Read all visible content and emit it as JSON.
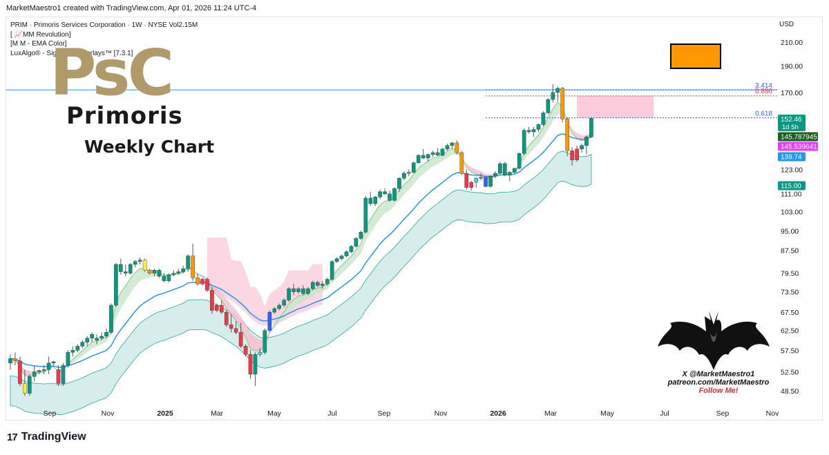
{
  "header": {
    "attribution": "MarketMaestro1 created with TradingView.com, Apr 01, 2026 11:24 UTC-4"
  },
  "legend": [
    "PRIM · Primoris Services Corporation · 1W · NYSE  Vol2.15M",
    "[ 📈MM Revolution]",
    "[M M - EMA Color]",
    "LuxAlgo® - Signals & Overlays™ [7.3.1]"
  ],
  "currency": "USD",
  "brand": {
    "logo_text": "PsC",
    "name": "Primoris",
    "subtitle": "Weekly Chart"
  },
  "social": {
    "x_handle": "X @MarketMaestro1",
    "patreon": "patreon.com/MarketMaestro",
    "follow": "Follow Me!"
  },
  "footer": {
    "logo_mark": "17",
    "logo_text": "TradingView"
  },
  "colors": {
    "up": "#089981",
    "down": "#f23645",
    "orange": "#ff9800",
    "blue": "#2962ff",
    "cyan": "#4dd0e1",
    "yellow": "#ffeb3b",
    "ema": "#2196f3",
    "band": "#b2dfdb",
    "cloud_up": "#c8e6c9",
    "cloud_down": "#f8bbd0"
  },
  "chart_data": {
    "type": "candlestick",
    "symbol": "PRIM",
    "interval": "1W",
    "y_scale": "log",
    "ylim": [
      45,
      230
    ],
    "y_ticks": [
      "210.00",
      "190.00",
      "170.00",
      "152.46",
      "145.787945",
      "145.539641",
      "139.74",
      "123.00",
      "115.00",
      "111.00",
      "103.00",
      "95.00",
      "87.50",
      "79.50",
      "73.50",
      "67.50",
      "62.50",
      "57.50",
      "52.50",
      "48.50"
    ],
    "x_ticks": [
      "Sep",
      "Nov",
      "2025",
      "Mar",
      "May",
      "Jul",
      "Sep",
      "Nov",
      "2026",
      "Mar",
      "May",
      "Jul",
      "Sep",
      "Nov"
    ],
    "price_labels": [
      {
        "value": "152.46",
        "sub": "1d 5h",
        "color": "#089981"
      },
      {
        "value": "145.787945",
        "color": "#1b5e20"
      },
      {
        "value": "145.539641",
        "color": "#e040fb"
      },
      {
        "value": "139.74",
        "color": "#2196f3"
      },
      {
        "value": "115.00",
        "color": "#089981"
      }
    ],
    "fib_levels": [
      {
        "label": "3.414",
        "value": 171.8,
        "color": "#2962ff"
      },
      {
        "label": "0.886",
        "value": 167.5,
        "color": "#f23645"
      },
      {
        "label": "0.618",
        "value": 152.8,
        "color": "#2962ff"
      }
    ],
    "resistance_line": 171.8,
    "zone": {
      "from_week": 118,
      "to_week": 134,
      "low": 152.8,
      "high": 167.5
    },
    "candles": [
      [
        54.5,
        56.5,
        53,
        55.5,
        "up"
      ],
      [
        55.5,
        57,
        54,
        55,
        "orange"
      ],
      [
        55,
        56,
        49.5,
        50,
        "down"
      ],
      [
        50,
        53,
        47.5,
        48,
        "yellow"
      ],
      [
        48,
        52,
        47.5,
        51.5,
        "up"
      ],
      [
        51.5,
        54,
        50.5,
        52.5,
        "up"
      ],
      [
        52.5,
        53,
        52,
        52.8,
        "up"
      ],
      [
        52.8,
        54,
        52,
        53,
        "up"
      ],
      [
        53,
        56,
        52,
        54.5,
        "up"
      ],
      [
        54.5,
        55,
        54,
        54.8,
        "up"
      ],
      [
        53,
        54,
        49.5,
        50,
        "down"
      ],
      [
        50,
        54.5,
        49.5,
        54,
        "up"
      ],
      [
        54,
        57.5,
        53.5,
        57,
        "up"
      ],
      [
        57,
        58.5,
        56,
        57.5,
        "up"
      ],
      [
        57.5,
        59,
        57,
        58.5,
        "up"
      ],
      [
        58.5,
        60,
        58,
        59.5,
        "up"
      ],
      [
        59.5,
        61,
        58.5,
        60.5,
        "up"
      ],
      [
        60.5,
        62,
        59.5,
        61.5,
        "up"
      ],
      [
        60,
        61.5,
        59,
        60.5,
        "up"
      ],
      [
        60.5,
        62,
        60,
        61,
        "up"
      ],
      [
        61,
        63,
        60.5,
        62,
        "up"
      ],
      [
        62,
        70,
        61.5,
        69.5,
        "up"
      ],
      [
        69.5,
        83,
        69,
        82.5,
        "up"
      ],
      [
        82.5,
        84.5,
        79,
        80,
        "up"
      ],
      [
        80,
        82.5,
        78.5,
        79.5,
        "up"
      ],
      [
        79.5,
        83,
        79,
        82.5,
        "up"
      ],
      [
        82.5,
        84,
        81.5,
        83.5,
        "up"
      ],
      [
        83.5,
        85,
        82.5,
        84,
        "up"
      ],
      [
        84,
        84.5,
        80,
        80.5,
        "yellow"
      ],
      [
        80.5,
        81,
        79,
        79.5,
        "orange"
      ],
      [
        79.5,
        81,
        78.5,
        80.5,
        "up"
      ],
      [
        80.5,
        81,
        78,
        78.5,
        "up"
      ],
      [
        78.5,
        79.5,
        76.5,
        77,
        "up"
      ],
      [
        77,
        79.5,
        76.5,
        79,
        "up"
      ],
      [
        79,
        80.5,
        78.5,
        79.5,
        "up"
      ],
      [
        79.5,
        81,
        79,
        80,
        "up"
      ],
      [
        80,
        82,
        79.5,
        81,
        "up"
      ],
      [
        81,
        86,
        80,
        85.5,
        "up"
      ],
      [
        85.5,
        90,
        77,
        78,
        "orange"
      ],
      [
        78,
        79.5,
        75.5,
        76,
        "orange"
      ],
      [
        76,
        78,
        75.5,
        77.5,
        "down"
      ],
      [
        77.5,
        78,
        73.5,
        74,
        "down"
      ],
      [
        74,
        75,
        67,
        68,
        "down"
      ],
      [
        68,
        70,
        67.5,
        69.5,
        "down"
      ],
      [
        69.5,
        71,
        67,
        67.5,
        "down"
      ],
      [
        67.5,
        68,
        63.5,
        64,
        "down"
      ],
      [
        64,
        67,
        62,
        63,
        "down"
      ],
      [
        63,
        65,
        61.5,
        62,
        "down"
      ],
      [
        62,
        64.5,
        58,
        58.5,
        "down"
      ],
      [
        58.5,
        59,
        56,
        56.5,
        "down"
      ],
      [
        56.5,
        57.5,
        51,
        52,
        "down"
      ],
      [
        52,
        57,
        49.5,
        56.5,
        "up"
      ],
      [
        56.5,
        58,
        56,
        57,
        "cyan"
      ],
      [
        57,
        63,
        56.5,
        62.5,
        "up"
      ],
      [
        62.5,
        68,
        62,
        67.5,
        "blue"
      ],
      [
        67.5,
        69,
        67,
        68.5,
        "up"
      ],
      [
        68.5,
        70,
        68,
        69.5,
        "up"
      ],
      [
        69.5,
        71.5,
        69,
        71,
        "up"
      ],
      [
        71,
        75,
        70.5,
        74.5,
        "up"
      ],
      [
        74.5,
        76,
        72.5,
        73.5,
        "up"
      ],
      [
        73.5,
        75,
        73,
        74.5,
        "up"
      ],
      [
        74.5,
        75.5,
        72.5,
        73,
        "up"
      ],
      [
        73,
        75,
        72.5,
        74.5,
        "up"
      ],
      [
        74.5,
        77,
        74,
        76.5,
        "up"
      ],
      [
        76.5,
        77,
        75,
        75.5,
        "up"
      ],
      [
        75.5,
        77,
        74.5,
        76,
        "up"
      ],
      [
        76,
        78,
        75.5,
        77.5,
        "up"
      ],
      [
        77.5,
        84,
        77,
        83.5,
        "up"
      ],
      [
        83.5,
        85,
        83,
        84.5,
        "up"
      ],
      [
        84.5,
        86,
        84,
        85.5,
        "up"
      ],
      [
        85.5,
        87.5,
        85,
        87,
        "up"
      ],
      [
        87,
        89.5,
        86.5,
        89,
        "up"
      ],
      [
        89,
        92.5,
        88.5,
        92,
        "up"
      ],
      [
        92,
        95,
        91.5,
        94.5,
        "up"
      ],
      [
        94.5,
        110,
        94,
        109,
        "up"
      ],
      [
        109,
        112,
        105.5,
        106.5,
        "up"
      ],
      [
        106.5,
        110,
        105.5,
        109.5,
        "up"
      ],
      [
        109.5,
        113,
        108.5,
        112,
        "up"
      ],
      [
        112,
        113.5,
        110.5,
        111,
        "up"
      ],
      [
        111,
        112.5,
        107.5,
        108,
        "up"
      ],
      [
        108,
        114,
        107.5,
        113.5,
        "up"
      ],
      [
        113.5,
        119,
        112,
        118.5,
        "up"
      ],
      [
        118.5,
        122,
        117.5,
        121,
        "up"
      ],
      [
        121,
        123,
        119.5,
        121.5,
        "up"
      ],
      [
        121.5,
        127,
        121,
        126.5,
        "up"
      ],
      [
        126.5,
        131,
        126,
        130.5,
        "up"
      ],
      [
        130.5,
        134,
        128.5,
        129,
        "up"
      ],
      [
        129,
        131.5,
        127,
        131,
        "up"
      ],
      [
        131,
        133,
        129.5,
        132,
        "up"
      ],
      [
        132,
        134.5,
        130,
        130.5,
        "up"
      ],
      [
        130.5,
        134.5,
        130,
        134,
        "up"
      ],
      [
        134,
        137,
        133,
        136,
        "up"
      ],
      [
        136,
        138,
        134,
        137.5,
        "up"
      ],
      [
        137.5,
        139,
        131,
        132,
        "orange"
      ],
      [
        132,
        133,
        120,
        121,
        "orange"
      ],
      [
        121,
        123,
        113,
        114,
        "down"
      ],
      [
        114,
        117,
        112.5,
        116.5,
        "down"
      ],
      [
        116.5,
        119,
        114,
        118.5,
        "cyan"
      ],
      [
        118.5,
        121,
        117.5,
        119,
        "down"
      ],
      [
        119,
        119.5,
        114,
        114.5,
        "blue"
      ],
      [
        114.5,
        120,
        114,
        119.5,
        "up"
      ],
      [
        119.5,
        122,
        118.5,
        121,
        "up"
      ],
      [
        121,
        127,
        120,
        126,
        "up"
      ],
      [
        126,
        127,
        119.5,
        120,
        "up"
      ],
      [
        120,
        122,
        117,
        121.5,
        "up"
      ],
      [
        121.5,
        124,
        121,
        123.5,
        "up"
      ],
      [
        123.5,
        132,
        123,
        131.5,
        "up"
      ],
      [
        131.5,
        146,
        130.5,
        145,
        "up"
      ],
      [
        145,
        147,
        143,
        144,
        "up"
      ],
      [
        144,
        147,
        141,
        145.5,
        "up"
      ],
      [
        145.5,
        149,
        144,
        148.5,
        "up"
      ],
      [
        148.5,
        157,
        147.5,
        156,
        "up"
      ],
      [
        156,
        166,
        155,
        165,
        "up"
      ],
      [
        165,
        176,
        163,
        170,
        "up"
      ],
      [
        170,
        174,
        164,
        173,
        "up"
      ],
      [
        173,
        174,
        150,
        152,
        "orange"
      ],
      [
        152,
        153,
        130,
        133,
        "orange"
      ],
      [
        133,
        135,
        125,
        128,
        "down"
      ],
      [
        128,
        136,
        127,
        134,
        "down"
      ],
      [
        134,
        137,
        132,
        136,
        "up"
      ],
      [
        136,
        142,
        131,
        141,
        "up"
      ],
      [
        141,
        153,
        140.5,
        152.46,
        "up"
      ]
    ]
  }
}
